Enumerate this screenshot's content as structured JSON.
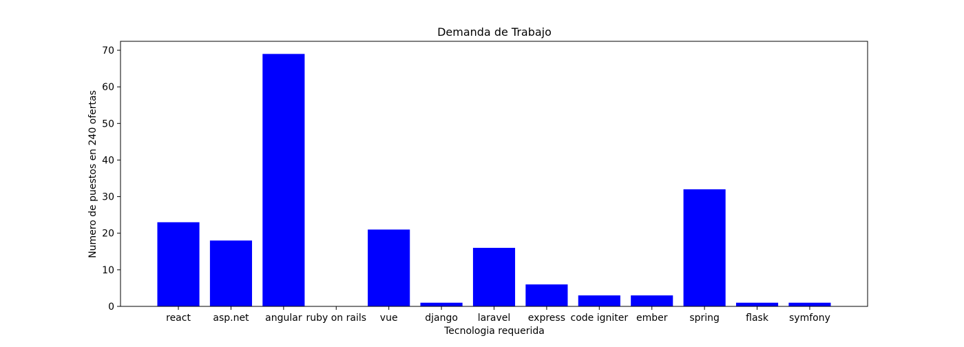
{
  "chart_data": {
    "type": "bar",
    "title": "Demanda de Trabajo",
    "xlabel": "Tecnologia requerida",
    "ylabel": "Numero de puestos en 240 ofertas",
    "categories": [
      "react",
      "asp.net",
      "angular",
      "ruby on rails",
      "vue",
      "django",
      "laravel",
      "express",
      "code igniter",
      "ember",
      "spring",
      "flask",
      "symfony"
    ],
    "values": [
      23,
      18,
      69,
      0,
      21,
      1,
      16,
      6,
      3,
      3,
      32,
      1,
      1
    ],
    "ylim": [
      0,
      72.45
    ],
    "yticks": [
      0,
      10,
      20,
      30,
      40,
      50,
      60,
      70
    ],
    "grid": false,
    "bar_color": "#0000ff"
  }
}
